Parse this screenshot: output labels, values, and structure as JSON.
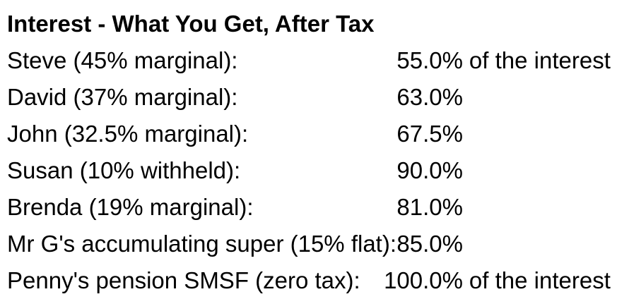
{
  "title": "Interest - What You Get, After Tax",
  "rows": [
    {
      "label": "Steve (45% marginal):",
      "value": "55.0%",
      "suffix": "of the interest"
    },
    {
      "label": "David (37% marginal):",
      "value": "63.0%",
      "suffix": ""
    },
    {
      "label": "John (32.5% marginal):",
      "value": "67.5%",
      "suffix": ""
    },
    {
      "label": "Susan (10% withheld):",
      "value": "90.0%",
      "suffix": ""
    },
    {
      "label": "Brenda (19% marginal):",
      "value": "81.0%",
      "suffix": ""
    },
    {
      "label": "Mr G's accumulating super (15% flat):",
      "value": "85.0%",
      "suffix": ""
    },
    {
      "label": "Penny's pension SMSF (zero tax):",
      "value": "100.0%",
      "suffix": "of the interest"
    }
  ],
  "colors": {
    "text": "#000000",
    "background": "#ffffff"
  }
}
